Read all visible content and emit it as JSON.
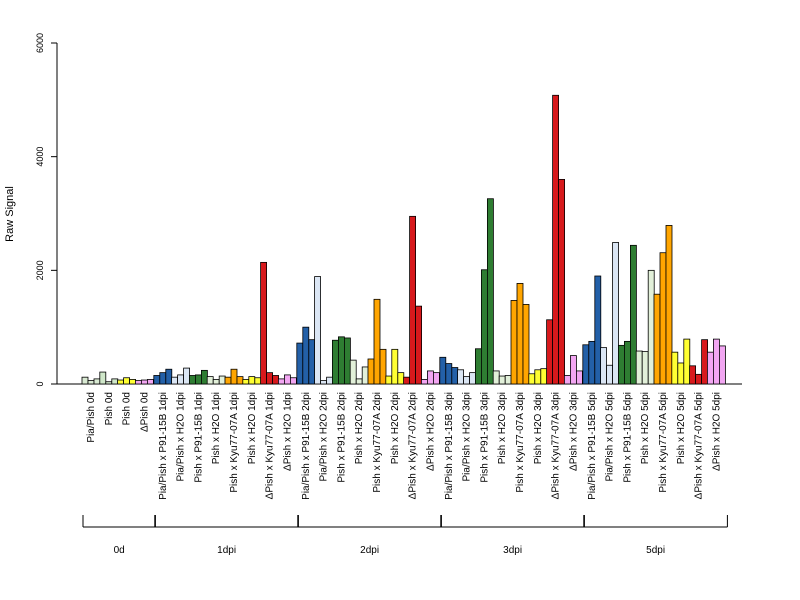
{
  "chart_data": {
    "type": "bar",
    "ylabel": "Raw Signal",
    "ylim": [
      0,
      6000
    ],
    "yticks": [
      0,
      2000,
      4000,
      6000
    ],
    "grid": false,
    "groups": [
      {
        "label": "0d",
        "bars": [
          {
            "label": "Pia/Pish 0d",
            "color": "#d9ead3",
            "values": [
              120,
              60,
              90
            ]
          },
          {
            "label": "Pish 0d",
            "color": "#cfe7c9",
            "values": [
              210,
              40,
              90
            ]
          },
          {
            "label": "Pish 0d",
            "color": "#ffff33",
            "values": [
              70,
              110,
              80
            ]
          },
          {
            "label": "ΔPish 0d",
            "color": "#f2a6f2",
            "values": [
              60,
              70,
              80
            ]
          }
        ]
      },
      {
        "label": "1dpi",
        "bars": [
          {
            "label": "Pia/Pish x P91-15B 1dpi",
            "color": "#2360a8",
            "values": [
              150,
              200,
              260
            ]
          },
          {
            "label": "Pia/Pish x H2O 1dpi",
            "color": "#dbe6f4",
            "values": [
              120,
              160,
              280
            ]
          },
          {
            "label": "Pish x P91-15B 1dpi",
            "color": "#2e7d32",
            "values": [
              150,
              160,
              240
            ]
          },
          {
            "label": "Pish x H2O 1dpi",
            "color": "#e2f0d9",
            "values": [
              130,
              80,
              140
            ]
          },
          {
            "label": "Pish x Kyu77-07A 1dpi",
            "color": "#ffa500",
            "values": [
              120,
              260,
              130
            ]
          },
          {
            "label": "Pish x H2O 1dpi",
            "color": "#ffff33",
            "values": [
              80,
              130,
              110
            ]
          },
          {
            "label": "ΔPish x Kyu77-07A 1dpi",
            "color": "#d7191c",
            "values": [
              2140,
              200,
              150
            ]
          },
          {
            "label": "ΔPish x H2O 1dpi",
            "color": "#f2a6f2",
            "values": [
              90,
              160,
              110
            ]
          }
        ]
      },
      {
        "label": "2dpi",
        "bars": [
          {
            "label": "Pia/Pish x P91-15B 2dpi",
            "color": "#2360a8",
            "values": [
              720,
              1000,
              780
            ]
          },
          {
            "label": "Pia/Pish x H2O 2dpi",
            "color": "#dbe6f4",
            "values": [
              1890,
              60,
              120
            ]
          },
          {
            "label": "Pish x P91-15B 2dpi",
            "color": "#2e7d32",
            "values": [
              770,
              830,
              810
            ]
          },
          {
            "label": "Pish x H2O 2dpi",
            "color": "#e2f0d9",
            "values": [
              420,
              90,
              300
            ]
          },
          {
            "label": "Pish x Kyu77-07A 2dpi",
            "color": "#ffa500",
            "values": [
              440,
              1490,
              610
            ]
          },
          {
            "label": "Pish x H2O 2dpi",
            "color": "#ffff33",
            "values": [
              140,
              610,
              200
            ]
          },
          {
            "label": "ΔPish x Kyu77-07A 2dpi",
            "color": "#d7191c",
            "values": [
              120,
              2950,
              1370
            ]
          },
          {
            "label": "ΔPish x H2O 2dpi",
            "color": "#f2a6f2",
            "values": [
              80,
              230,
              200
            ]
          }
        ]
      },
      {
        "label": "3dpi",
        "bars": [
          {
            "label": "Pia/Pish x P91-15B 3dpi",
            "color": "#2360a8",
            "values": [
              470,
              360,
              290
            ]
          },
          {
            "label": "Pia/Pish x H2O 3dpi",
            "color": "#dbe6f4",
            "values": [
              250,
              130,
              200
            ]
          },
          {
            "label": "Pish x P91-15B 3dpi",
            "color": "#2e7d32",
            "values": [
              620,
              2010,
              3260
            ]
          },
          {
            "label": "Pish x H2O 3dpi",
            "color": "#e2f0d9",
            "values": [
              230,
              140,
              150
            ]
          },
          {
            "label": "Pish x Kyu77-07A 3dpi",
            "color": "#ffa500",
            "values": [
              1470,
              1770,
              1400
            ]
          },
          {
            "label": "Pish x H2O 3dpi",
            "color": "#ffff33",
            "values": [
              180,
              250,
              270
            ]
          },
          {
            "label": "ΔPish x Kyu77-07A 3dpi",
            "color": "#d7191c",
            "values": [
              1130,
              5080,
              3600
            ]
          },
          {
            "label": "ΔPish x H2O 3dpi",
            "color": "#f2a6f2",
            "values": [
              150,
              500,
              230
            ]
          }
        ]
      },
      {
        "label": "5dpi",
        "bars": [
          {
            "label": "Pia/Pish x P91-15B 5dpi",
            "color": "#2360a8",
            "values": [
              690,
              750,
              1900
            ]
          },
          {
            "label": "Pia/Pish x H2O 5dpi",
            "color": "#dbe6f4",
            "values": [
              640,
              330,
              2490
            ]
          },
          {
            "label": "Pish x P91-15B 5dpi",
            "color": "#2e7d32",
            "values": [
              680,
              750,
              2440
            ]
          },
          {
            "label": "Pish x H2O 5dpi",
            "color": "#e2f0d9",
            "values": [
              580,
              570,
              2000
            ]
          },
          {
            "label": "Pish x Kyu77-07A 5dpi",
            "color": "#ffa500",
            "values": [
              1580,
              2310,
              2790
            ]
          },
          {
            "label": "Pish x H2O 5dpi",
            "color": "#ffff33",
            "values": [
              560,
              370,
              790
            ]
          },
          {
            "label": "ΔPish x Kyu77-07A 5dpi",
            "color": "#d7191c",
            "values": [
              320,
              170,
              780
            ]
          },
          {
            "label": "ΔPish x H2O 5dpi",
            "color": "#f2a6f2",
            "values": [
              560,
              790,
              670
            ]
          }
        ]
      }
    ]
  }
}
